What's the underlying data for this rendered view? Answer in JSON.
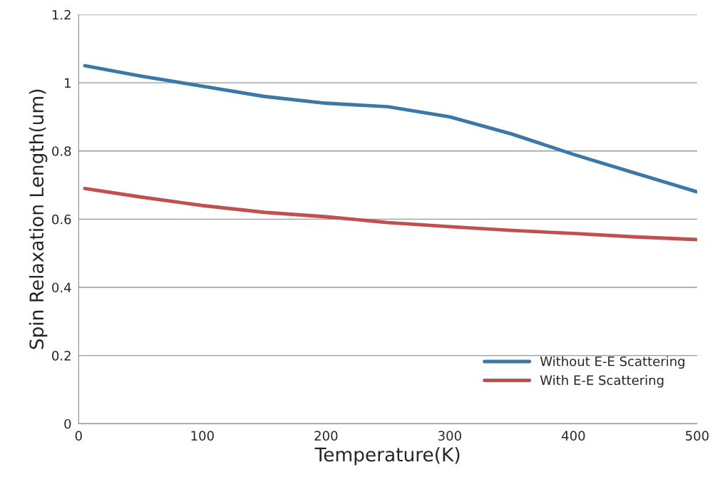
{
  "chart_data": {
    "type": "line",
    "xlabel": "Temperature(K)",
    "ylabel": "Spin Relaxation Length(um)",
    "x": [
      5,
      50,
      100,
      150,
      200,
      250,
      300,
      350,
      400,
      450,
      500
    ],
    "series": [
      {
        "name": "Without E-E Scattering",
        "color": "#3b78a8",
        "values": [
          1.05,
          1.02,
          0.99,
          0.96,
          0.94,
          0.93,
          0.9,
          0.85,
          0.79,
          0.735,
          0.68
        ]
      },
      {
        "name": "With E-E Scattering",
        "color": "#c0504d",
        "values": [
          0.69,
          0.665,
          0.64,
          0.62,
          0.607,
          0.59,
          0.578,
          0.567,
          0.558,
          0.548,
          0.54
        ]
      }
    ],
    "xlim": [
      0,
      500
    ],
    "xticks": [
      0,
      100,
      200,
      300,
      400,
      500
    ],
    "ylim": [
      0,
      1.2
    ],
    "yticks": [
      0,
      0.2,
      0.4,
      0.6,
      0.8,
      1,
      1.2
    ],
    "grid": "y",
    "legend": "bottom right",
    "marker": "none",
    "line_style": "solid"
  }
}
